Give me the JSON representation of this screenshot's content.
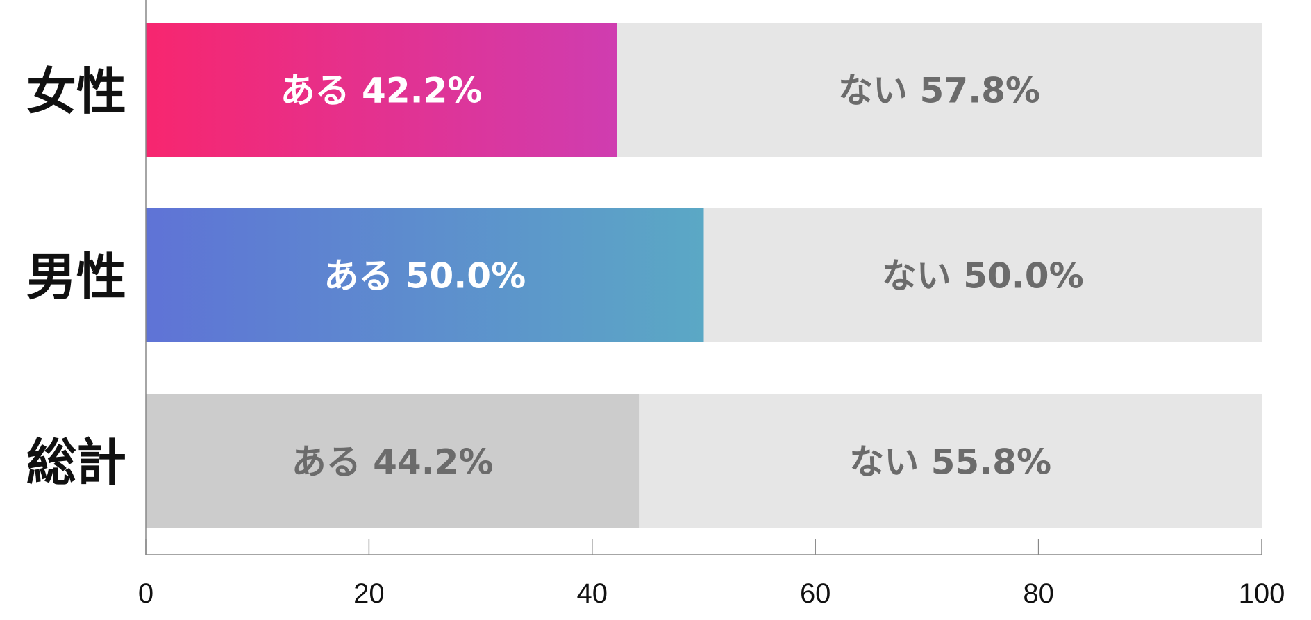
{
  "chart_data": {
    "type": "bar",
    "orientation": "horizontal",
    "stacked": true,
    "categories": [
      "女性",
      "男性",
      "総計"
    ],
    "series": [
      {
        "name": "ある",
        "values": [
          42.2,
          50.0,
          44.2
        ]
      },
      {
        "name": "ない",
        "values": [
          57.8,
          50.0,
          55.8
        ]
      }
    ],
    "data_labels": [
      [
        "ある 42.2%",
        "ない 57.8%"
      ],
      [
        "ある 50.0%",
        "ない 50.0%"
      ],
      [
        "ある 44.2%",
        "ない 55.8%"
      ]
    ],
    "x_ticks": [
      "0",
      "20",
      "40",
      "60",
      "80",
      "100"
    ],
    "xlim": [
      0,
      100
    ],
    "grid": false,
    "legend": "none",
    "colors": {
      "female_gradient": [
        "#f7266f",
        "#cf3db0"
      ],
      "male_gradient": [
        "#5f73d6",
        "#5ba8c5"
      ],
      "total_yes": "#cccccc",
      "no": "#e6e6e6",
      "label_on_color": "#ffffff",
      "label_on_gray": "#6b6b6b",
      "axis": "#888888"
    }
  }
}
